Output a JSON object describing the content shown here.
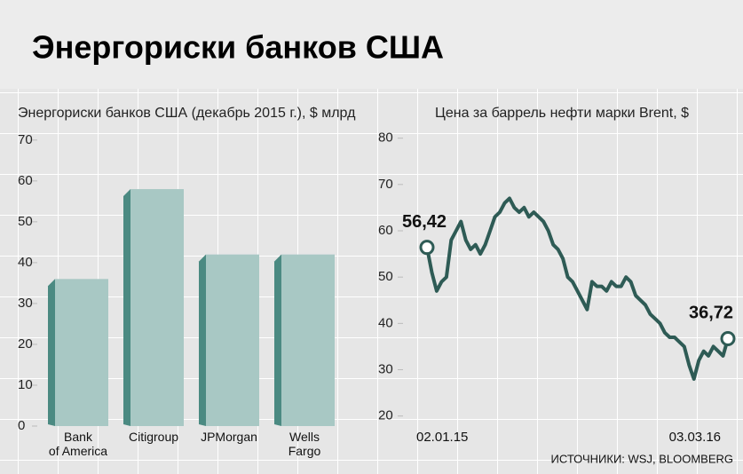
{
  "title": "Энергориски банков США",
  "source": "ИСТОЧНИКИ: WSJ, BLOOMBERG",
  "chart_data": [
    {
      "type": "bar",
      "title": "Энергориски банков США (декабрь 2015 г.), $ млрд",
      "categories": [
        "Bank\nof America",
        "Citigroup",
        "JPMorgan",
        "Wells\nFargo"
      ],
      "values": [
        36,
        58,
        42,
        42
      ],
      "color": "#a8c8c4",
      "side_color": "#4b8a82",
      "ylim": [
        0,
        73
      ],
      "yticks": [
        0,
        10,
        20,
        30,
        40,
        50,
        60,
        70
      ]
    },
    {
      "type": "line",
      "title": "Цена за баррель нефти марки Brent, $",
      "categories": [
        "02.01.15",
        null,
        null,
        null,
        null,
        null,
        null,
        null,
        null,
        null,
        null,
        null,
        null,
        null,
        null,
        null,
        null,
        null,
        null,
        null,
        null,
        null,
        null,
        null,
        null,
        null,
        null,
        null,
        null,
        null,
        null,
        null,
        null,
        null,
        null,
        null,
        null,
        null,
        null,
        null,
        null,
        null,
        null,
        null,
        null,
        null,
        null,
        null,
        null,
        null,
        null,
        null,
        null,
        null,
        null,
        null,
        null,
        null,
        null,
        null,
        null,
        null,
        "03.03.16"
      ],
      "values": [
        56.42,
        51,
        47,
        49,
        50,
        58,
        60,
        62,
        58,
        56,
        57,
        55,
        57,
        60,
        63,
        64,
        66,
        67,
        65,
        64,
        65,
        63,
        64,
        63,
        62,
        60,
        57,
        56,
        54,
        50,
        49,
        47,
        45,
        43,
        49,
        48,
        48,
        47,
        49,
        48,
        48,
        50,
        49,
        46,
        45,
        44,
        42,
        41,
        40,
        38,
        37,
        37,
        36,
        35,
        31,
        28,
        32,
        34,
        33,
        35,
        34,
        33,
        36.72
      ],
      "value_labels": [
        "56,42",
        null,
        null,
        null,
        null,
        null,
        null,
        null,
        null,
        null,
        null,
        null,
        null,
        null,
        null,
        null,
        null,
        null,
        null,
        null,
        null,
        null,
        null,
        null,
        null,
        null,
        null,
        null,
        null,
        null,
        null,
        null,
        null,
        null,
        null,
        null,
        null,
        null,
        null,
        null,
        null,
        null,
        null,
        null,
        null,
        null,
        null,
        null,
        null,
        null,
        null,
        null,
        null,
        null,
        null,
        null,
        null,
        null,
        null,
        null,
        null,
        null,
        "36,72"
      ],
      "color": "#2e5b55",
      "ylim": [
        14,
        83
      ],
      "yticks": [
        20,
        30,
        40,
        50,
        60,
        70,
        80
      ]
    }
  ]
}
